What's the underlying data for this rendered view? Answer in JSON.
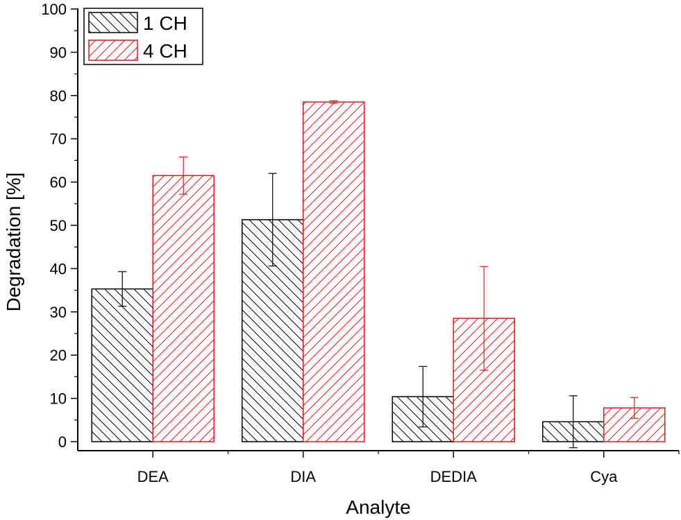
{
  "chart_data": {
    "type": "bar",
    "title": "",
    "xlabel": "Analyte",
    "ylabel": "Degradation [%]",
    "ylim": [
      0,
      100
    ],
    "yticks": [
      0,
      10,
      20,
      30,
      40,
      50,
      60,
      70,
      80,
      90,
      100
    ],
    "categories": [
      "DEA",
      "DIA",
      "DEDIA",
      "Cya"
    ],
    "series": [
      {
        "name": "1 CH",
        "color": "#000000",
        "hatch": "backslash",
        "values": [
          35.3,
          51.3,
          10.4,
          4.6
        ],
        "errors": [
          4.0,
          10.7,
          7.0,
          6.0
        ]
      },
      {
        "name": "4 CH",
        "color": "#e0191e",
        "hatch": "slash",
        "values": [
          61.5,
          78.5,
          28.5,
          7.8
        ],
        "errors": [
          4.3,
          0.3,
          12.0,
          2.4
        ]
      }
    ],
    "legend_position": "top-left",
    "grid": false
  }
}
